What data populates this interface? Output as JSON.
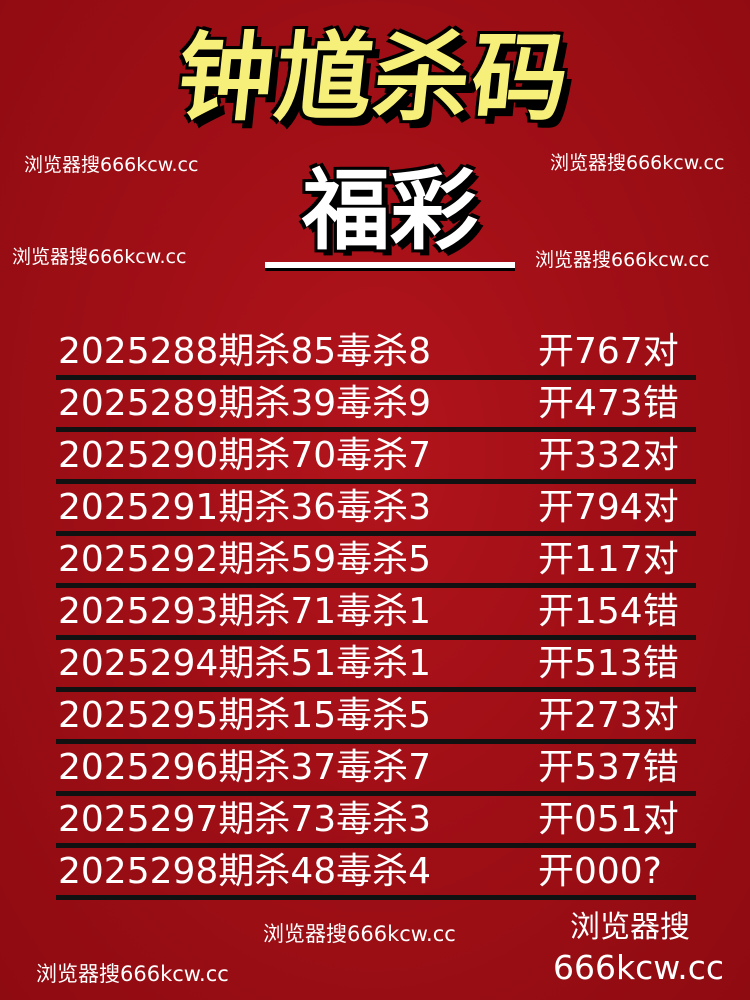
{
  "title": "钟馗杀码",
  "subtitle": "福彩",
  "watermarks": [
    "浏览器搜666kcw.cc",
    "浏览器搜666kcw.cc",
    "浏览器搜666kcw.cc",
    "浏览器搜666kcw.cc",
    "浏览器搜666kcw.cc",
    "浏览器搜666kcw.cc",
    "浏览器搜",
    "666kcw.cc"
  ],
  "rows": [
    {
      "left": "2025288期杀85毒杀8",
      "right": "开767对"
    },
    {
      "left": "2025289期杀39毒杀9",
      "right": "开473错"
    },
    {
      "left": "2025290期杀70毒杀7",
      "right": "开332对"
    },
    {
      "left": "2025291期杀36毒杀3",
      "right": "开794对"
    },
    {
      "left": "2025292期杀59毒杀5",
      "right": "开117对"
    },
    {
      "left": "2025293期杀71毒杀1",
      "right": "开154错"
    },
    {
      "left": "2025294期杀51毒杀1",
      "right": "开513错"
    },
    {
      "left": "2025295期杀15毒杀5",
      "right": "开273对"
    },
    {
      "left": "2025296期杀37毒杀7",
      "right": "开537错"
    },
    {
      "left": "2025297期杀73毒杀3",
      "right": "开051对"
    },
    {
      "left": "2025298期杀48毒杀4",
      "right": "开000?"
    }
  ]
}
